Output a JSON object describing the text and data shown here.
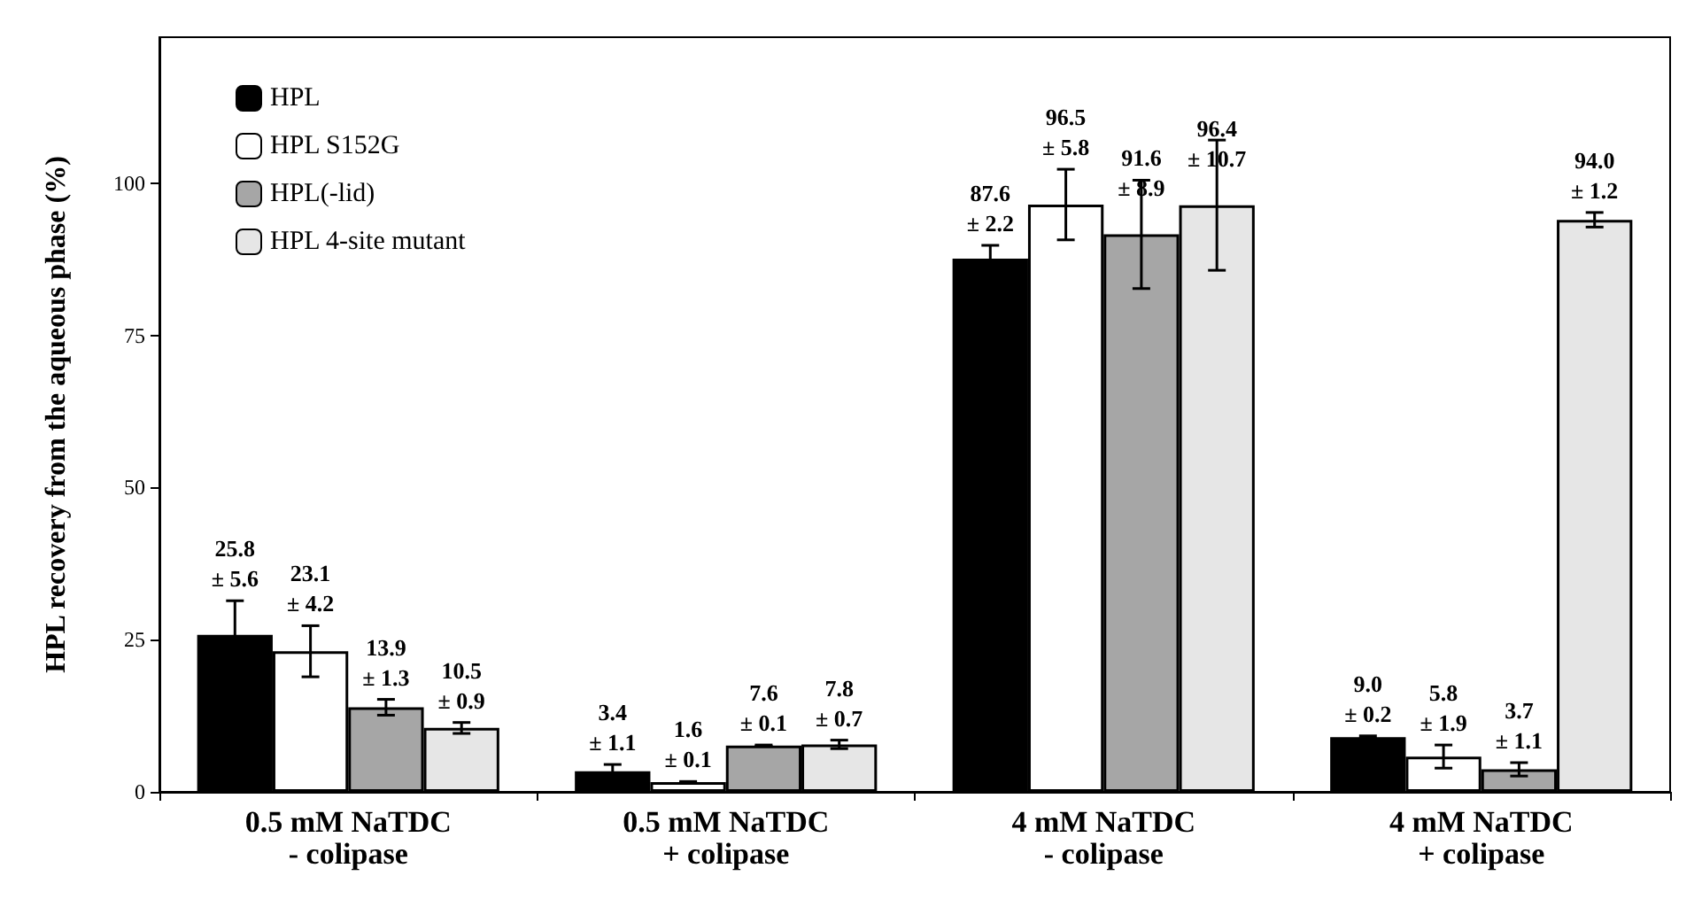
{
  "chart_data": {
    "type": "bar",
    "ylabel": "HPL recovery from the aqueous phase (%)",
    "categories": [
      "0.5 mM NaTDC\n- colipase",
      "0.5 mM NaTDC\n+ colipase",
      "4 mM NaTDC\n- colipase",
      "4 mM NaTDC\n+ colipase"
    ],
    "series": [
      {
        "name": "HPL",
        "color": "#000000",
        "values": [
          25.8,
          3.4,
          87.6,
          9.0
        ],
        "errors": [
          5.6,
          1.1,
          2.2,
          0.2
        ],
        "value_labels": [
          "25.8\n± 5.6",
          "3.4\n± 1.1",
          "87.6\n± 2.2",
          "9.0\n± 0.2"
        ]
      },
      {
        "name": "HPL S152G",
        "color": "#ffffff",
        "values": [
          23.1,
          1.6,
          96.5,
          5.8
        ],
        "errors": [
          4.2,
          0.1,
          5.8,
          1.9
        ],
        "value_labels": [
          "23.1\n± 4.2",
          "1.6\n± 0.1",
          "96.5\n± 5.8",
          "5.8\n± 1.9"
        ]
      },
      {
        "name": "HPL(-lid)",
        "color": "#a6a6a6",
        "values": [
          13.9,
          7.6,
          91.6,
          3.7
        ],
        "errors": [
          1.3,
          0.1,
          8.9,
          1.1
        ],
        "value_labels": [
          "13.9\n± 1.3",
          "7.6\n± 0.1",
          "91.6\n± 8.9",
          "3.7\n± 1.1"
        ]
      },
      {
        "name": "HPL 4-site mutant",
        "color": "#e6e6e6",
        "values": [
          10.5,
          7.8,
          96.4,
          94.0
        ],
        "errors": [
          0.9,
          0.7,
          10.7,
          1.2
        ],
        "value_labels": [
          "10.5\n± 0.9",
          "7.8\n± 0.7",
          "96.4\n± 10.7",
          "94.0\n± 1.2"
        ]
      }
    ],
    "ylim": [
      0,
      124
    ],
    "yticks": [
      0,
      25,
      50,
      75,
      100
    ],
    "grid": false,
    "legend": "top left"
  }
}
